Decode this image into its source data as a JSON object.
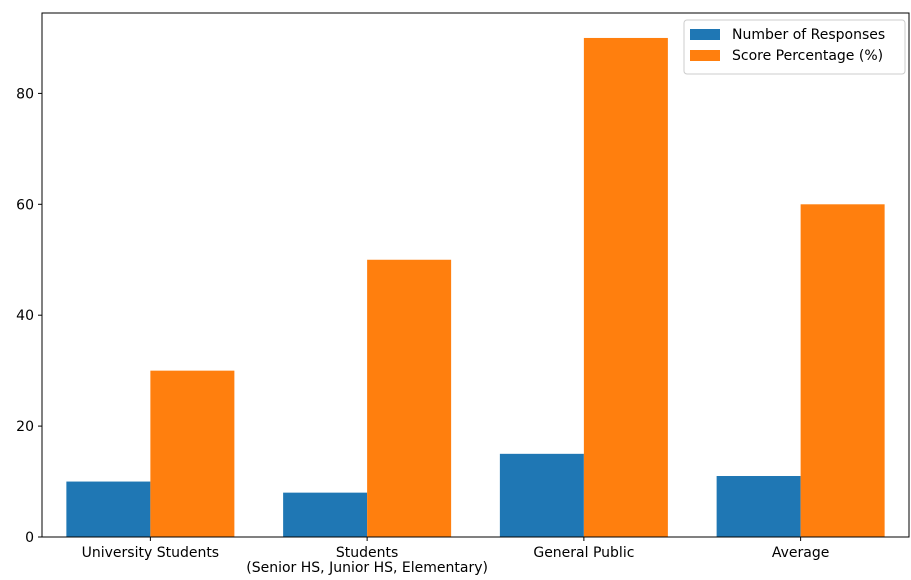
{
  "chart_data": {
    "type": "bar",
    "title": "",
    "xlabel": "",
    "ylabel": "",
    "categories": [
      [
        "University Students"
      ],
      [
        "Students",
        "(Senior HS, Junior HS, Elementary)"
      ],
      [
        "General Public"
      ],
      [
        "Average"
      ]
    ],
    "series": [
      {
        "name": "Number of Responses",
        "color": "#1f77b4",
        "values": [
          10,
          8,
          15,
          11
        ]
      },
      {
        "name": "Score Percentage (%)",
        "color": "#ff7f0e",
        "values": [
          30,
          50,
          90,
          60
        ]
      }
    ],
    "ylim": [
      0,
      94.5
    ],
    "yticks": [
      0,
      20,
      40,
      60,
      80
    ],
    "grid": false,
    "legend_position": "top-right"
  }
}
